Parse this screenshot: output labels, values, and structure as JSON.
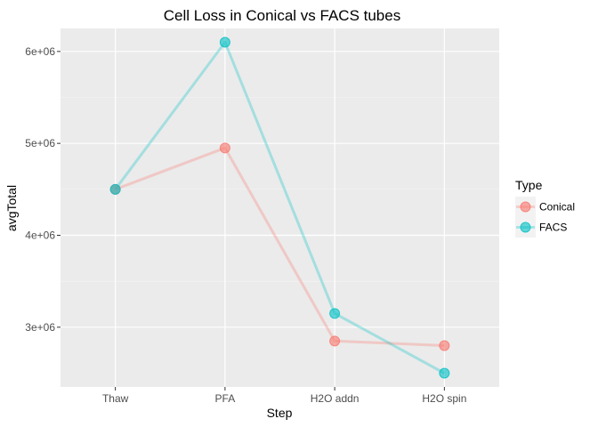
{
  "chart_data": {
    "type": "line",
    "title": "Cell Loss in Conical vs FACS tubes",
    "xlabel": "Step",
    "ylabel": "avgTotal",
    "categories": [
      "Thaw",
      "PFA",
      "H2O addn",
      "H2O spin"
    ],
    "ylim": [
      2350000,
      6250000
    ],
    "yticks": [
      3000000,
      4000000,
      5000000,
      6000000
    ],
    "ytick_labels": [
      "3e+06",
      "4e+06",
      "5e+06",
      "6e+06"
    ],
    "grid": true,
    "legend": {
      "title": "Type",
      "position": "right"
    },
    "series": [
      {
        "name": "Conical",
        "color": "#F8766D",
        "values": [
          4500000,
          4950000,
          2850000,
          2800000
        ]
      },
      {
        "name": "FACS",
        "color": "#00BFC4",
        "values": [
          4500000,
          6100000,
          3150000,
          2500000
        ]
      }
    ]
  }
}
